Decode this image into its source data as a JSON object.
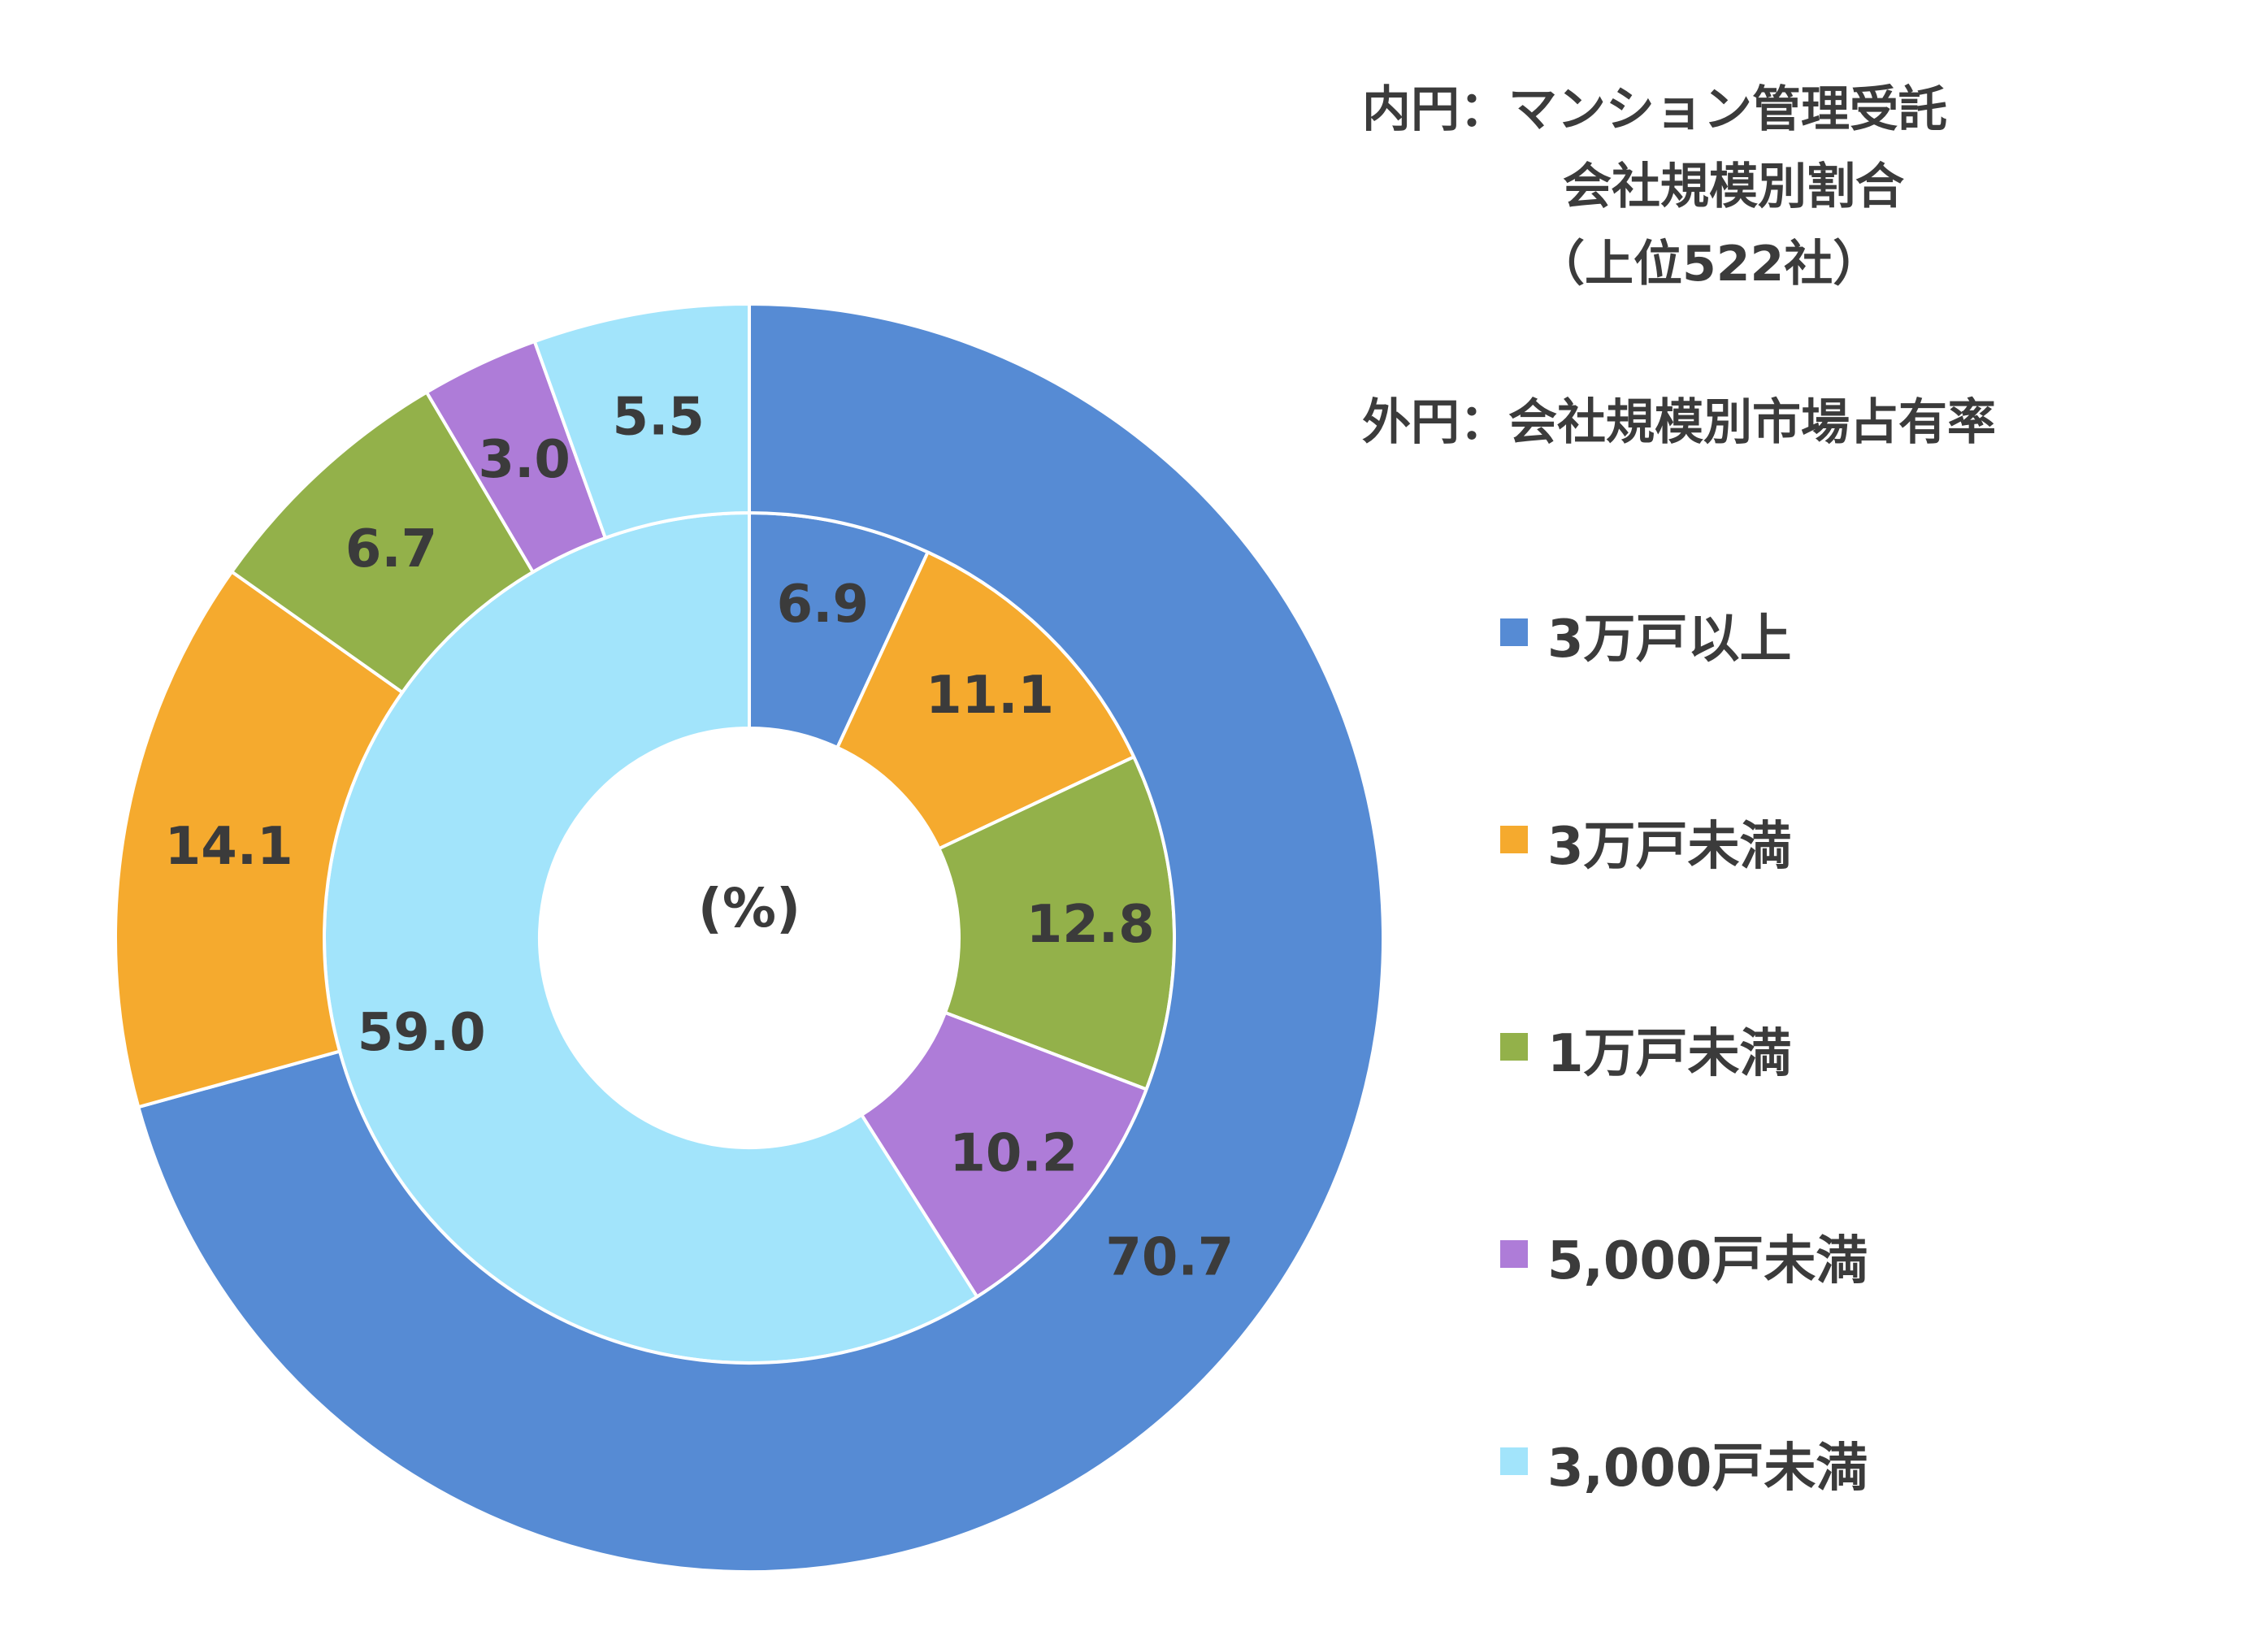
{
  "chart_data": {
    "type": "pie",
    "subtype": "nested-donut",
    "unit_label": "(%)",
    "notes": {
      "inner_label": "内円：マンション管理受託",
      "inner_label_line2": "会社規模別割合",
      "inner_label_line3": "（上位522社）",
      "outer_label": "外円：会社規模別市場占有率"
    },
    "categories": [
      "3万戸以上",
      "3万戸未満",
      "1万戸未満",
      "5,000戸未満",
      "3,000戸未満"
    ],
    "colors": [
      "#568BD4",
      "#F5AA2E",
      "#93B14A",
      "#AE7CD8",
      "#A2E4FB"
    ],
    "series": [
      {
        "ring": "inner",
        "values": [
          6.9,
          11.1,
          12.8,
          10.2,
          59.0
        ],
        "labels": [
          "6.9",
          "11.1",
          "12.8",
          "10.2",
          "59.0"
        ]
      },
      {
        "ring": "outer",
        "values": [
          70.7,
          14.1,
          6.7,
          3.0,
          5.5
        ],
        "labels": [
          "70.7",
          "14.1",
          "6.7",
          "3.0",
          "5.5"
        ]
      }
    ],
    "legend_position": "right"
  }
}
